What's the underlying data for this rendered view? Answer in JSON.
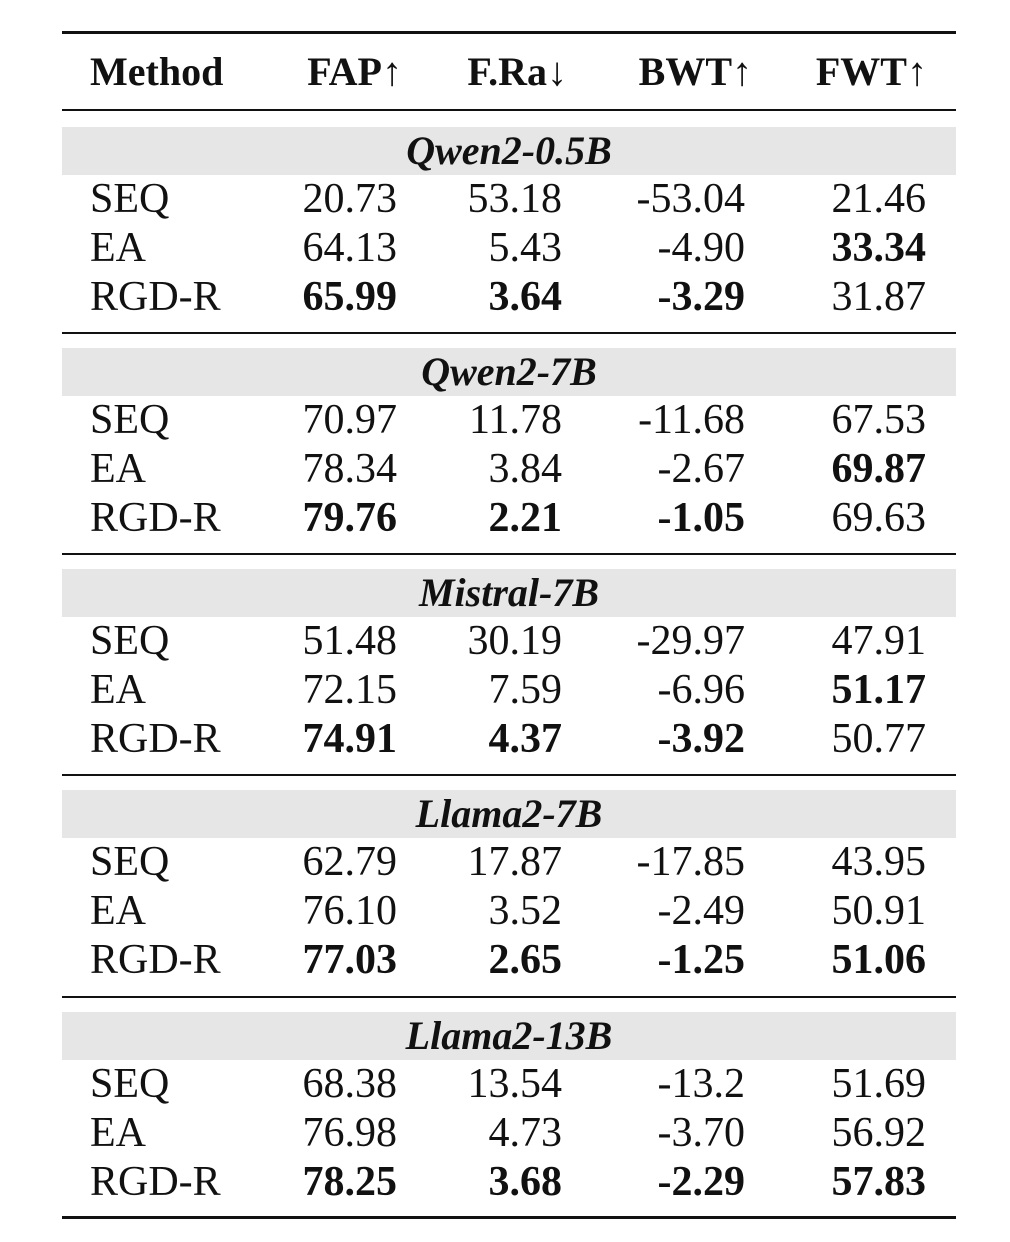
{
  "table": {
    "headers": [
      "Method",
      "FAP↑",
      "F.Ra↓",
      "BWT↑",
      "FWT↑"
    ],
    "groups": [
      {
        "title": "Qwen2-0.5B",
        "rows": [
          {
            "method": "SEQ",
            "values": [
              "20.73",
              "53.18",
              "-53.04",
              "21.46"
            ],
            "bold": [
              false,
              false,
              false,
              false
            ]
          },
          {
            "method": "EA",
            "values": [
              "64.13",
              "5.43",
              "-4.90",
              "33.34"
            ],
            "bold": [
              false,
              false,
              false,
              true
            ]
          },
          {
            "method": "RGD-R",
            "values": [
              "65.99",
              "3.64",
              "-3.29",
              "31.87"
            ],
            "bold": [
              true,
              true,
              true,
              false
            ]
          }
        ]
      },
      {
        "title": "Qwen2-7B",
        "rows": [
          {
            "method": "SEQ",
            "values": [
              "70.97",
              "11.78",
              "-11.68",
              "67.53"
            ],
            "bold": [
              false,
              false,
              false,
              false
            ]
          },
          {
            "method": "EA",
            "values": [
              "78.34",
              "3.84",
              "-2.67",
              "69.87"
            ],
            "bold": [
              false,
              false,
              false,
              true
            ]
          },
          {
            "method": "RGD-R",
            "values": [
              "79.76",
              "2.21",
              "-1.05",
              "69.63"
            ],
            "bold": [
              true,
              true,
              true,
              false
            ]
          }
        ]
      },
      {
        "title": "Mistral-7B",
        "rows": [
          {
            "method": "SEQ",
            "values": [
              "51.48",
              "30.19",
              "-29.97",
              "47.91"
            ],
            "bold": [
              false,
              false,
              false,
              false
            ]
          },
          {
            "method": "EA",
            "values": [
              "72.15",
              "7.59",
              "-6.96",
              "51.17"
            ],
            "bold": [
              false,
              false,
              false,
              true
            ]
          },
          {
            "method": "RGD-R",
            "values": [
              "74.91",
              "4.37",
              "-3.92",
              "50.77"
            ],
            "bold": [
              true,
              true,
              true,
              false
            ]
          }
        ]
      },
      {
        "title": "Llama2-7B",
        "rows": [
          {
            "method": "SEQ",
            "values": [
              "62.79",
              "17.87",
              "-17.85",
              "43.95"
            ],
            "bold": [
              false,
              false,
              false,
              false
            ]
          },
          {
            "method": "EA",
            "values": [
              "76.10",
              "3.52",
              "-2.49",
              "50.91"
            ],
            "bold": [
              false,
              false,
              false,
              false
            ]
          },
          {
            "method": "RGD-R",
            "values": [
              "77.03",
              "2.65",
              "-1.25",
              "51.06"
            ],
            "bold": [
              true,
              true,
              true,
              true
            ]
          }
        ]
      },
      {
        "title": "Llama2-13B",
        "rows": [
          {
            "method": "SEQ",
            "values": [
              "68.38",
              "13.54",
              "-13.2",
              "51.69"
            ],
            "bold": [
              false,
              false,
              false,
              false
            ]
          },
          {
            "method": "EA",
            "values": [
              "76.98",
              "4.73",
              "-3.70",
              "56.92"
            ],
            "bold": [
              false,
              false,
              false,
              false
            ]
          },
          {
            "method": "RGD-R",
            "values": [
              "78.25",
              "3.68",
              "-2.29",
              "57.83"
            ],
            "bold": [
              true,
              true,
              true,
              true
            ]
          }
        ]
      }
    ]
  },
  "colors": {
    "group_band": "#e6e6e6",
    "text": "#111111",
    "rule": "#111111"
  }
}
